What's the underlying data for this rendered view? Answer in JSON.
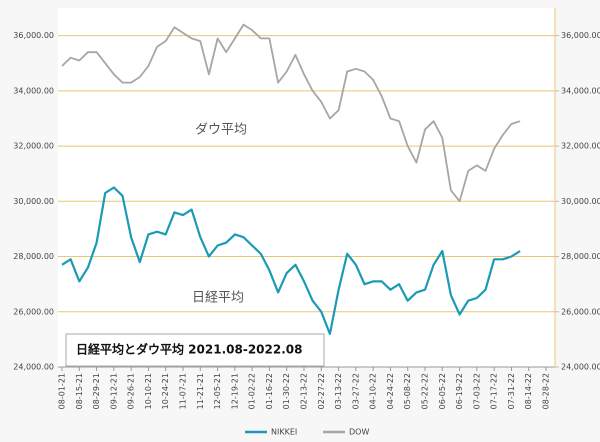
{
  "chart_data": {
    "type": "line",
    "categories": [
      "08-01-21",
      null,
      "08-15-21",
      null,
      "08-29-21",
      null,
      "09-12-21",
      null,
      "09-26-21",
      null,
      "10-10-21",
      null,
      "10-24-21",
      null,
      "11-07-21",
      null,
      "11-21-21",
      null,
      "12-05-21",
      null,
      "12-19-21",
      null,
      "01-02-22",
      null,
      "01-16-22",
      null,
      "01-30-22",
      null,
      "02-13-22",
      null,
      "02-27-22",
      null,
      "03-13-22",
      null,
      "03-27-22",
      null,
      "04-10-22",
      null,
      "04-24-22",
      null,
      "05-08-22",
      null,
      "05-22-22",
      null,
      "06-05-22",
      null,
      "06-19-22",
      null,
      "07-03-22",
      null,
      "07-17-22",
      null,
      "07-31-22",
      null,
      "08-14-22",
      null,
      "08-28-22"
    ],
    "series": [
      {
        "name": "NIKKEI",
        "color": "#1a9bb5",
        "values": [
          27700,
          27900,
          27100,
          27600,
          28500,
          30300,
          30500,
          30200,
          28700,
          27800,
          28800,
          28900,
          28800,
          29600,
          29500,
          29700,
          28700,
          28000,
          28400,
          28500,
          28800,
          28700,
          28400,
          28100,
          27500,
          26700,
          27400,
          27700,
          27100,
          26400,
          26000,
          25200,
          26800,
          28100,
          27700,
          27000,
          27100,
          27100,
          26800,
          27000,
          26400,
          26700,
          26800,
          27700,
          28200,
          26600,
          25900,
          26400,
          26500,
          26800,
          27900,
          27900,
          28000,
          28200,
          null,
          null,
          null
        ]
      },
      {
        "name": "DOW",
        "color": "#a6a6a6",
        "axis": "y2",
        "values": [
          34900,
          35200,
          35100,
          35400,
          35400,
          35000,
          34600,
          34300,
          34300,
          34500,
          34900,
          35600,
          35800,
          36300,
          36100,
          35900,
          35800,
          34600,
          35900,
          35400,
          35900,
          36400,
          36200,
          35900,
          35900,
          34300,
          34700,
          35300,
          34600,
          34000,
          33600,
          33000,
          33300,
          34700,
          34800,
          34700,
          34400,
          33800,
          33000,
          32900,
          32000,
          31400,
          32600,
          32900,
          32300,
          30400,
          30000,
          31100,
          31300,
          31100,
          31900,
          32400,
          32800,
          32900,
          null,
          null,
          null
        ]
      }
    ],
    "ylim": [
      24000,
      37000
    ],
    "yticks": [
      {
        "value": 24000,
        "label": "24,000.00"
      },
      {
        "value": 26000,
        "label": "26,000.00"
      },
      {
        "value": 28000,
        "label": "28,000.00"
      },
      {
        "value": 30000,
        "label": "30,000.00"
      },
      {
        "value": 32000,
        "label": "32,000.00"
      },
      {
        "value": 34000,
        "label": "34,000.00"
      },
      {
        "value": 36000,
        "label": "36,000.00"
      }
    ],
    "y2lim": [
      24000,
      37000
    ],
    "y2ticks": [
      {
        "value": 24000,
        "label": "24,000.00"
      },
      {
        "value": 26000,
        "label": "26,000.00"
      },
      {
        "value": 28000,
        "label": "28,000.00"
      },
      {
        "value": 30000,
        "label": "30,000.00"
      },
      {
        "value": 32000,
        "label": "32,000.00"
      },
      {
        "value": 34000,
        "label": "34,000.00"
      },
      {
        "value": 36000,
        "label": "36,000.00"
      }
    ],
    "grid": true,
    "grid_color": "#e8c870",
    "legend": "bottom",
    "annotations": [
      "ダウ平均",
      "日経平均",
      "日経平均とダウ平均 2021.08-2022.08"
    ]
  }
}
